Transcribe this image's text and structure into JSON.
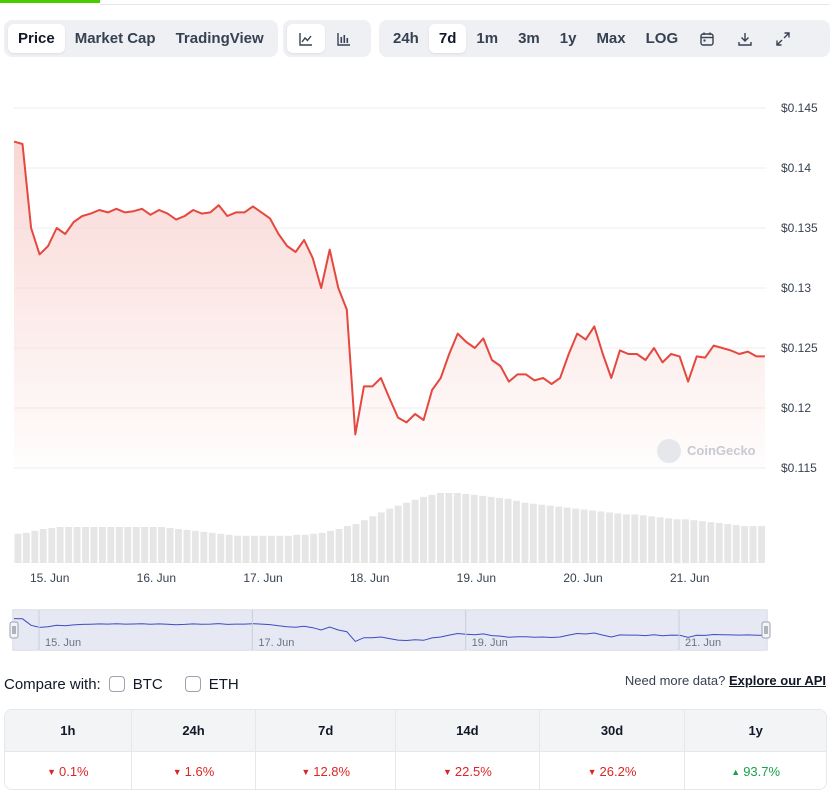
{
  "tabs": {
    "price": "Price",
    "market_cap": "Market Cap",
    "tradingview": "TradingView"
  },
  "view_icons": [
    "line-chart-icon",
    "candlestick-chart-icon"
  ],
  "ranges": [
    "24h",
    "7d",
    "1m",
    "3m",
    "1y",
    "Max",
    "LOG"
  ],
  "active_tab": "Price",
  "active_range": "7d",
  "tool_icons": [
    "calendar-icon",
    "download-icon",
    "expand-icon"
  ],
  "colors": {
    "line": "#e5483f",
    "area_top": "#f8d3d0",
    "volume": "#e6e6e6",
    "navigator_fill": "#dde2ef",
    "navigator_line": "#3b4cc0",
    "negative": "#dc2626",
    "positive": "#16a34a"
  },
  "watermark": "CoinGecko",
  "chart_data": {
    "type": "line",
    "x_labels": [
      "15. Jun",
      "16. Jun",
      "17. Jun",
      "18. Jun",
      "19. Jun",
      "20. Jun",
      "21. Jun"
    ],
    "y_ticks": [
      "$0.145",
      "$0.14",
      "$0.135",
      "$0.13",
      "$0.125",
      "$0.12",
      "$0.115"
    ],
    "ylim": [
      0.115,
      0.145
    ],
    "xlim": [
      0,
      7.05
    ],
    "grid": true,
    "x": [
      0.0,
      0.08,
      0.16,
      0.24,
      0.32,
      0.4,
      0.48,
      0.56,
      0.64,
      0.72,
      0.8,
      0.88,
      0.96,
      1.04,
      1.12,
      1.2,
      1.28,
      1.36,
      1.44,
      1.52,
      1.6,
      1.68,
      1.76,
      1.84,
      1.92,
      2.0,
      2.08,
      2.16,
      2.24,
      2.32,
      2.4,
      2.48,
      2.56,
      2.64,
      2.72,
      2.8,
      2.88,
      2.96,
      3.04,
      3.12,
      3.2,
      3.28,
      3.36,
      3.44,
      3.52,
      3.6,
      3.68,
      3.76,
      3.84,
      3.92,
      4.0,
      4.08,
      4.16,
      4.24,
      4.32,
      4.4,
      4.48,
      4.56,
      4.64,
      4.72,
      4.8,
      4.88,
      4.96,
      5.04,
      5.12,
      5.2,
      5.28,
      5.36,
      5.44,
      5.52,
      5.6,
      5.68,
      5.76,
      5.84,
      5.92,
      6.0,
      6.08,
      6.16,
      6.24,
      6.32,
      6.4,
      6.48,
      6.56,
      6.64,
      6.72,
      6.8,
      6.88,
      6.96,
      7.04
    ],
    "y": [
      0.1422,
      0.142,
      0.135,
      0.1328,
      0.1335,
      0.135,
      0.1345,
      0.1355,
      0.136,
      0.1362,
      0.1365,
      0.1363,
      0.1366,
      0.1363,
      0.1364,
      0.1366,
      0.1361,
      0.1365,
      0.1362,
      0.1357,
      0.136,
      0.1365,
      0.1362,
      0.1363,
      0.1369,
      0.136,
      0.1363,
      0.1363,
      0.1368,
      0.1363,
      0.1358,
      0.1345,
      0.1335,
      0.133,
      0.134,
      0.1325,
      0.13,
      0.1332,
      0.13,
      0.1282,
      0.1178,
      0.1218,
      0.1218,
      0.1225,
      0.1208,
      0.1192,
      0.1188,
      0.1195,
      0.119,
      0.1215,
      0.1225,
      0.1245,
      0.1262,
      0.1255,
      0.125,
      0.1258,
      0.124,
      0.1235,
      0.1222,
      0.1228,
      0.1228,
      0.1223,
      0.1225,
      0.122,
      0.1225,
      0.1245,
      0.1262,
      0.1257,
      0.1268,
      0.1245,
      0.1225,
      0.1248,
      0.1245,
      0.1245,
      0.124,
      0.125,
      0.1238,
      0.1245,
      0.1243,
      0.1222,
      0.1243,
      0.1242,
      0.1252,
      0.125,
      0.1248,
      0.1245,
      0.1247,
      0.1243,
      0.1243
    ],
    "volume": [
      30,
      31,
      33,
      35,
      36,
      37,
      37,
      37,
      37,
      37,
      37,
      37,
      37,
      37,
      37,
      37,
      37,
      37,
      36,
      35,
      34,
      33,
      32,
      31,
      30,
      29,
      28,
      28,
      28,
      28,
      28,
      28,
      28,
      29,
      29,
      30,
      31,
      33,
      35,
      38,
      40,
      44,
      48,
      52,
      56,
      59,
      62,
      65,
      68,
      70,
      72,
      72,
      72,
      71,
      70,
      69,
      68,
      67,
      66,
      64,
      62,
      61,
      60,
      59,
      58,
      57,
      56,
      55,
      54,
      53,
      52,
      51,
      50,
      50,
      49,
      48,
      47,
      46,
      45,
      45,
      44,
      43,
      42,
      41,
      40,
      39,
      38,
      38,
      38
    ],
    "navigator_labels": [
      "15. Jun",
      "17. Jun",
      "19. Jun",
      "21. Jun"
    ]
  },
  "compare": {
    "label": "Compare with:",
    "options": [
      "BTC",
      "ETH"
    ],
    "api_text": "Need more data?",
    "api_link": "Explore our API"
  },
  "performance": {
    "headers": [
      "1h",
      "24h",
      "7d",
      "14d",
      "30d",
      "1y"
    ],
    "values": [
      "0.1%",
      "1.6%",
      "12.8%",
      "22.5%",
      "26.2%",
      "93.7%"
    ],
    "directions": [
      "down",
      "down",
      "down",
      "down",
      "down",
      "up"
    ]
  }
}
